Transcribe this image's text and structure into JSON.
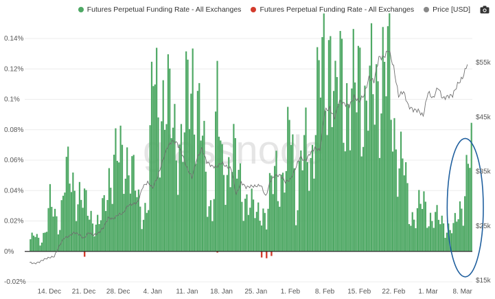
{
  "legend": {
    "items": [
      {
        "label": "Futures Perpetual Funding Rate - All Exchanges",
        "color": "#4ea864"
      },
      {
        "label": "Futures Perpetual Funding Rate - All Exchanges",
        "color": "#d33b2c"
      },
      {
        "label": "Price [USD]",
        "color": "#888888"
      }
    ],
    "camera_icon": "camera-icon"
  },
  "watermark": "glassnode",
  "chart_data": {
    "type": "bar",
    "title": "",
    "xlabel": "",
    "ylabel": "",
    "x_ticks": [
      "14. Dec",
      "21. Dec",
      "28. Dec",
      "4. Jan",
      "11. Jan",
      "18. Jan",
      "25. Jan",
      "1. Feb",
      "8. Feb",
      "15. Feb",
      "22. Feb",
      "1. Mar",
      "8. Mar"
    ],
    "y_left_ticks": [
      "-0.02%",
      "0%",
      "0.02%",
      "0.04%",
      "0.06%",
      "0.08%",
      "0.1%",
      "0.12%",
      "0.14%"
    ],
    "y_right_ticks": [
      "$15k",
      "$25k",
      "$35k",
      "$45k",
      "$55k"
    ],
    "ylim_left": [
      -0.02,
      0.14
    ],
    "ylim_right": [
      15000,
      55000
    ],
    "series": [
      {
        "name": "Futures Perpetual Funding Rate - All Exchanges",
        "color": "#4ea864",
        "axis": "left",
        "x": [
          "2020-12-10",
          "2020-12-11",
          "2020-12-12",
          "2020-12-13",
          "2020-12-14",
          "2020-12-15",
          "2020-12-16",
          "2020-12-17",
          "2020-12-18",
          "2020-12-19",
          "2020-12-20",
          "2020-12-21",
          "2020-12-22",
          "2020-12-23",
          "2020-12-24",
          "2020-12-25",
          "2020-12-26",
          "2020-12-27",
          "2020-12-28",
          "2020-12-29",
          "2020-12-30",
          "2020-12-31",
          "2021-01-01",
          "2021-01-02",
          "2021-01-03",
          "2021-01-04",
          "2021-01-05",
          "2021-01-06",
          "2021-01-07",
          "2021-01-08",
          "2021-01-09",
          "2021-01-10",
          "2021-01-11",
          "2021-01-12",
          "2021-01-13",
          "2021-01-14",
          "2021-01-15",
          "2021-01-16",
          "2021-01-17",
          "2021-01-18",
          "2021-01-19",
          "2021-01-20",
          "2021-01-21",
          "2021-01-22",
          "2021-01-23",
          "2021-01-24",
          "2021-01-25",
          "2021-01-26",
          "2021-01-27",
          "2021-01-28",
          "2021-01-29",
          "2021-01-30",
          "2021-01-31",
          "2021-02-01",
          "2021-02-02",
          "2021-02-03",
          "2021-02-04",
          "2021-02-05",
          "2021-02-06",
          "2021-02-07",
          "2021-02-08",
          "2021-02-09",
          "2021-02-10",
          "2021-02-11",
          "2021-02-12",
          "2021-02-13",
          "2021-02-14",
          "2021-02-15",
          "2021-02-16",
          "2021-02-17",
          "2021-02-18",
          "2021-02-19",
          "2021-02-20",
          "2021-02-21",
          "2021-02-22",
          "2021-02-23",
          "2021-02-24",
          "2021-02-25",
          "2021-02-26",
          "2021-02-27",
          "2021-02-28",
          "2021-03-01",
          "2021-03-02",
          "2021-03-03",
          "2021-03-04",
          "2021-03-05",
          "2021-03-06",
          "2021-03-07",
          "2021-03-08",
          "2021-03-09"
        ],
        "values": [
          0.008,
          0.01,
          0.006,
          0.014,
          0.03,
          0.022,
          0.02,
          0.05,
          0.045,
          0.042,
          0.038,
          0.03,
          0.025,
          0.02,
          0.018,
          0.028,
          0.05,
          0.06,
          0.058,
          0.06,
          0.065,
          0.045,
          0.03,
          0.026,
          0.035,
          0.115,
          0.1,
          0.098,
          0.09,
          0.085,
          0.075,
          0.066,
          0.1,
          0.12,
          0.095,
          0.07,
          0.035,
          0.03,
          0.095,
          0.05,
          0.056,
          0.065,
          0.052,
          0.04,
          0.035,
          0.028,
          0.024,
          0.032,
          0.018,
          0.042,
          0.06,
          0.044,
          0.045,
          0.1,
          0.03,
          0.055,
          0.066,
          0.062,
          0.09,
          0.11,
          0.122,
          0.145,
          0.085,
          0.12,
          0.11,
          0.09,
          0.1,
          0.125,
          0.094,
          0.097,
          0.107,
          0.12,
          0.115,
          0.11,
          0.082,
          0.06,
          0.053,
          0.025,
          0.024,
          0.028,
          0.03,
          0.024,
          0.022,
          0.02,
          0.018,
          0.016,
          0.014,
          0.024,
          0.035,
          0.06
        ]
      },
      {
        "name": "Futures Perpetual Funding Rate - All Exchanges",
        "color": "#d33b2c",
        "axis": "left",
        "x": [
          "2020-12-21",
          "2021-01-17",
          "2021-01-26",
          "2021-01-27",
          "2021-01-28"
        ],
        "values": [
          -0.0035,
          -0.0008,
          -0.004,
          -0.0045,
          -0.003
        ]
      },
      {
        "name": "Price [USD]",
        "color": "#777777",
        "axis": "right",
        "x": [
          "2020-12-10",
          "2020-12-11",
          "2020-12-12",
          "2020-12-13",
          "2020-12-14",
          "2020-12-15",
          "2020-12-16",
          "2020-12-17",
          "2020-12-18",
          "2020-12-19",
          "2020-12-20",
          "2020-12-21",
          "2020-12-22",
          "2020-12-23",
          "2020-12-24",
          "2020-12-25",
          "2020-12-26",
          "2020-12-27",
          "2020-12-28",
          "2020-12-29",
          "2020-12-30",
          "2020-12-31",
          "2021-01-01",
          "2021-01-02",
          "2021-01-03",
          "2021-01-04",
          "2021-01-05",
          "2021-01-06",
          "2021-01-07",
          "2021-01-08",
          "2021-01-09",
          "2021-01-10",
          "2021-01-11",
          "2021-01-12",
          "2021-01-13",
          "2021-01-14",
          "2021-01-15",
          "2021-01-16",
          "2021-01-17",
          "2021-01-18",
          "2021-01-19",
          "2021-01-20",
          "2021-01-21",
          "2021-01-22",
          "2021-01-23",
          "2021-01-24",
          "2021-01-25",
          "2021-01-26",
          "2021-01-27",
          "2021-01-28",
          "2021-01-29",
          "2021-01-30",
          "2021-01-31",
          "2021-02-01",
          "2021-02-02",
          "2021-02-03",
          "2021-02-04",
          "2021-02-05",
          "2021-02-06",
          "2021-02-07",
          "2021-02-08",
          "2021-02-09",
          "2021-02-10",
          "2021-02-11",
          "2021-02-12",
          "2021-02-13",
          "2021-02-14",
          "2021-02-15",
          "2021-02-16",
          "2021-02-17",
          "2021-02-18",
          "2021-02-19",
          "2021-02-20",
          "2021-02-21",
          "2021-02-22",
          "2021-02-23",
          "2021-02-24",
          "2021-02-25",
          "2021-02-26",
          "2021-02-27",
          "2021-02-28",
          "2021-03-01",
          "2021-03-02",
          "2021-03-03",
          "2021-03-04",
          "2021-03-05",
          "2021-03-06",
          "2021-03-07",
          "2021-03-08",
          "2021-03-09"
        ],
        "values": [
          18300,
          18100,
          18400,
          18900,
          19200,
          19400,
          21300,
          22800,
          23100,
          23800,
          23500,
          22700,
          23800,
          23300,
          23700,
          24700,
          26500,
          26300,
          27100,
          27300,
          28800,
          29000,
          29400,
          32200,
          33000,
          32000,
          34000,
          36800,
          39500,
          40600,
          40200,
          38200,
          35600,
          33900,
          37300,
          39200,
          36800,
          36000,
          35800,
          36600,
          35900,
          35500,
          30800,
          33000,
          32100,
          32300,
          32300,
          32500,
          30400,
          33400,
          34300,
          34300,
          33100,
          33500,
          35500,
          37700,
          36900,
          38300,
          39300,
          38900,
          46200,
          46500,
          44900,
          48000,
          47400,
          47100,
          48700,
          47900,
          49100,
          52200,
          51600,
          55900,
          56000,
          57400,
          54100,
          48900,
          49700,
          47000,
          46300,
          46200,
          45200,
          49600,
          48400,
          50500,
          48400,
          48800,
          49000,
          51000,
          52200,
          54800
        ]
      }
    ],
    "annotation": {
      "type": "ellipse",
      "color": "#1f5f9e",
      "around": "2021-03-06 to 2021-03-09"
    },
    "grid": true,
    "legend_position": "top-right"
  }
}
